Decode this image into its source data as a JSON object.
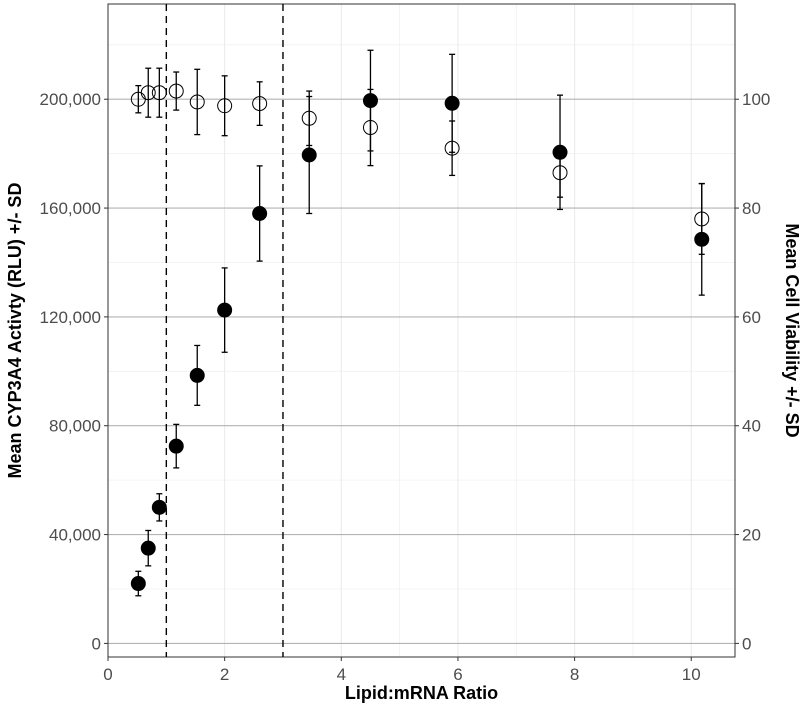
{
  "chart_data": {
    "type": "scatter",
    "title": "",
    "xlabel": "Lipid:mRNA Ratio",
    "ylabel_left": "Mean CYP3A4 Activty (RLU) +/- SD",
    "ylabel_right": "Mean Cell Viability +/- SD",
    "xlim": [
      0,
      10.75
    ],
    "ylim_left": [
      -5000,
      235000
    ],
    "ylim_right": [
      -2.5,
      117.5
    ],
    "x_ticks": [
      0,
      2,
      4,
      6,
      8,
      10
    ],
    "x_tick_labels": [
      "0",
      "2",
      "4",
      "6",
      "8",
      "10"
    ],
    "y_left_ticks": [
      0,
      40000,
      80000,
      120000,
      160000,
      200000
    ],
    "y_left_tick_labels": [
      "0",
      "40,000",
      "80,000",
      "120,000",
      "160,000",
      "200,000"
    ],
    "y_right_ticks": [
      0,
      20,
      40,
      60,
      80,
      100
    ],
    "y_right_tick_labels": [
      "0",
      "20",
      "40",
      "60",
      "80",
      "100"
    ],
    "grid": true,
    "reference_lines_x": [
      1,
      3
    ],
    "series": [
      {
        "axis": "left",
        "marker": "filled-circle",
        "color": "#000000",
        "points": [
          {
            "x": 0.52,
            "y": 22000,
            "sd": 4500
          },
          {
            "x": 0.69,
            "y": 35000,
            "sd": 6500
          },
          {
            "x": 0.88,
            "y": 50000,
            "sd": 5000
          },
          {
            "x": 1.17,
            "y": 72500,
            "sd": 8000
          },
          {
            "x": 1.53,
            "y": 98500,
            "sd": 11000
          },
          {
            "x": 2.0,
            "y": 122500,
            "sd": 15500
          },
          {
            "x": 2.6,
            "y": 158000,
            "sd": 17500
          },
          {
            "x": 3.45,
            "y": 179500,
            "sd": 21500
          },
          {
            "x": 4.5,
            "y": 199500,
            "sd": 18500
          },
          {
            "x": 5.9,
            "y": 198500,
            "sd": 18000
          },
          {
            "x": 7.75,
            "y": 180500,
            "sd": 21000
          },
          {
            "x": 10.18,
            "y": 148500,
            "sd": 20500
          }
        ]
      },
      {
        "axis": "right",
        "marker": "open-circle",
        "color": "#000000",
        "points": [
          {
            "x": 0.52,
            "y": 100.0,
            "sd": 2.5
          },
          {
            "x": 0.69,
            "y": 101.2,
            "sd": 4.5
          },
          {
            "x": 0.88,
            "y": 101.2,
            "sd": 4.5
          },
          {
            "x": 1.17,
            "y": 101.5,
            "sd": 3.5
          },
          {
            "x": 1.53,
            "y": 99.5,
            "sd": 6.0
          },
          {
            "x": 2.0,
            "y": 98.8,
            "sd": 5.5
          },
          {
            "x": 2.6,
            "y": 99.2,
            "sd": 4.0
          },
          {
            "x": 3.45,
            "y": 96.5,
            "sd": 5.0
          },
          {
            "x": 4.5,
            "y": 94.8,
            "sd": 7.0
          },
          {
            "x": 5.9,
            "y": 91.0,
            "sd": 5.0
          },
          {
            "x": 7.75,
            "y": 86.5,
            "sd": 4.5
          },
          {
            "x": 10.18,
            "y": 78.0,
            "sd": 6.5
          }
        ]
      }
    ]
  }
}
